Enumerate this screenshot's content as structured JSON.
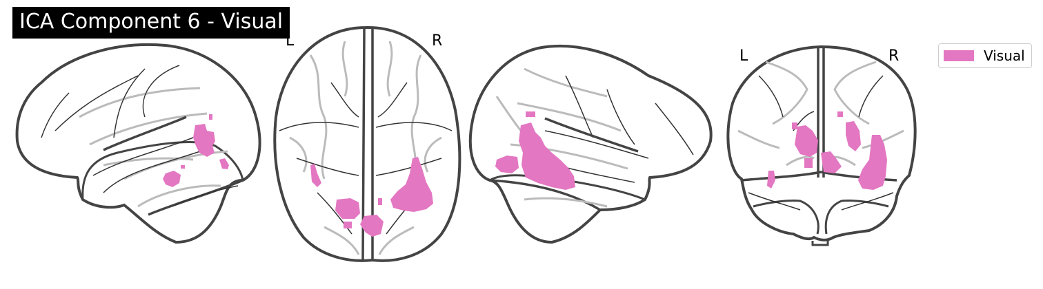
{
  "title": "ICA Component 6 - Visual",
  "views": {
    "sagittal_left": {},
    "axial": {
      "left_label": "L",
      "right_label": "R"
    },
    "sagittal_right": {},
    "coronal": {
      "left_label": "L",
      "right_label": "R"
    }
  },
  "legend": {
    "label": "Visual",
    "color": "#e377c2"
  },
  "colors": {
    "overlay": "#e377c2",
    "outline": "#444444",
    "inner_line": "#333333",
    "shadow_line": "#bbbbbb"
  }
}
